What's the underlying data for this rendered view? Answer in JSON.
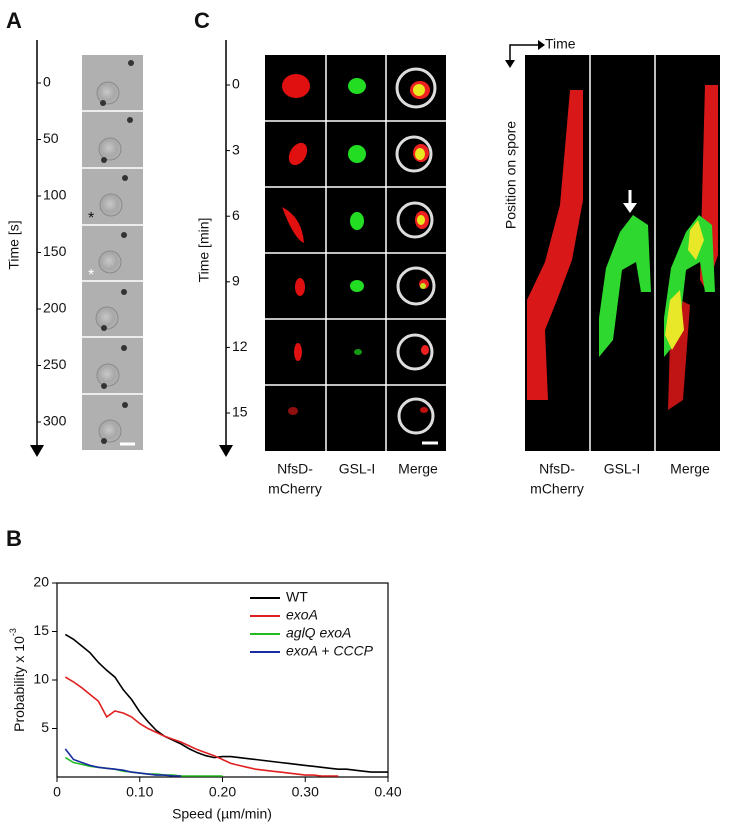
{
  "panel_a": {
    "label": "A",
    "axis_label": "Time [s]",
    "ticks": [
      0,
      50,
      100,
      150,
      200,
      250,
      300
    ]
  },
  "panel_c": {
    "label": "C",
    "axis_label": "Time [min]",
    "ticks": [
      0,
      3,
      6,
      9,
      12,
      15
    ],
    "columns": [
      [
        "NfsD-",
        "mCherry"
      ],
      [
        "GSL-I"
      ],
      [
        "Merge"
      ]
    ],
    "kymograph": {
      "time_label": "Time",
      "position_label": "Position on spore",
      "columns": [
        [
          "NfsD-",
          "mCherry"
        ],
        [
          "GSL-I"
        ],
        [
          "Merge"
        ]
      ]
    }
  },
  "chart_data": {
    "type": "line",
    "label": "B",
    "x_label": "Speed (µm/min)",
    "y_label": "Probability x 10",
    "y_label_exponent": "-3",
    "xlim": [
      0,
      0.4
    ],
    "ylim": [
      0,
      20
    ],
    "xticks": [
      0,
      {
        "value": 0.1,
        "label": "0.10"
      },
      {
        "value": 0.2,
        "label": "0.20"
      },
      {
        "value": 0.3,
        "label": "0.30"
      },
      {
        "value": 0.4,
        "label": "0.40"
      }
    ],
    "yticks": [
      5,
      10,
      15,
      20
    ],
    "legend": "top-right",
    "x": [
      0.01,
      0.02,
      0.03,
      0.04,
      0.05,
      0.06,
      0.07,
      0.08,
      0.09,
      0.1,
      0.11,
      0.12,
      0.13,
      0.14,
      0.15,
      0.16,
      0.17,
      0.18,
      0.19,
      0.2,
      0.21,
      0.22,
      0.23,
      0.24,
      0.25,
      0.26,
      0.27,
      0.28,
      0.29,
      0.3,
      0.31,
      0.32,
      0.33,
      0.34,
      0.35,
      0.36,
      0.37,
      0.38,
      0.39,
      0.4
    ],
    "series": [
      {
        "name": "WT",
        "color": "#000000",
        "values": [
          14.7,
          14.2,
          13.5,
          12.8,
          11.8,
          11,
          10.3,
          9,
          8,
          6.7,
          5.7,
          4.8,
          4.2,
          3.8,
          3.4,
          2.9,
          2.5,
          2.2,
          2,
          2.1,
          2.1,
          2,
          1.9,
          1.8,
          1.7,
          1.6,
          1.5,
          1.4,
          1.3,
          1.2,
          1.1,
          1,
          0.9,
          0.8,
          0.8,
          0.7,
          0.6,
          0.5,
          0.5,
          0.5
        ]
      },
      {
        "name": "exoA",
        "color": "#e02020",
        "values": [
          10.3,
          9.8,
          9.2,
          8.5,
          7.8,
          6.2,
          6.8,
          6.6,
          6.2,
          5.5,
          5,
          4.6,
          4.2,
          3.9,
          3.6,
          3.2,
          2.8,
          2.5,
          2.2,
          1.8,
          1.4,
          1.2,
          1,
          0.8,
          0.7,
          0.6,
          0.5,
          0.4,
          0.3,
          0.2,
          0.2,
          0.1,
          0.1,
          0.1,
          null,
          null,
          null,
          null,
          null,
          null
        ]
      },
      {
        "name": "aglQ exoA",
        "color": "#22bb22",
        "values": [
          2,
          1.5,
          1.3,
          1.1,
          1,
          0.9,
          0.8,
          0.6,
          0.5,
          0.4,
          0.3,
          0.3,
          0.2,
          0.2,
          0.1,
          0.1,
          0.1,
          0.1,
          0.1,
          0.1,
          null,
          null,
          null,
          null,
          null,
          null,
          null,
          null,
          null,
          null,
          null,
          null,
          null,
          null,
          null,
          null,
          null,
          null,
          null,
          null
        ]
      },
      {
        "name": "exoA + CCCP",
        "color": "#1a2aa0",
        "values": [
          2.9,
          1.8,
          1.5,
          1.2,
          1,
          0.9,
          0.8,
          0.7,
          0.5,
          0.4,
          0.3,
          0.2,
          0.2,
          0.1,
          0.1,
          null,
          null,
          null,
          null,
          null,
          null,
          null,
          null,
          null,
          null,
          null,
          null,
          null,
          null,
          null,
          null,
          null,
          null,
          null,
          null,
          null,
          null,
          null,
          null,
          null
        ]
      }
    ]
  }
}
